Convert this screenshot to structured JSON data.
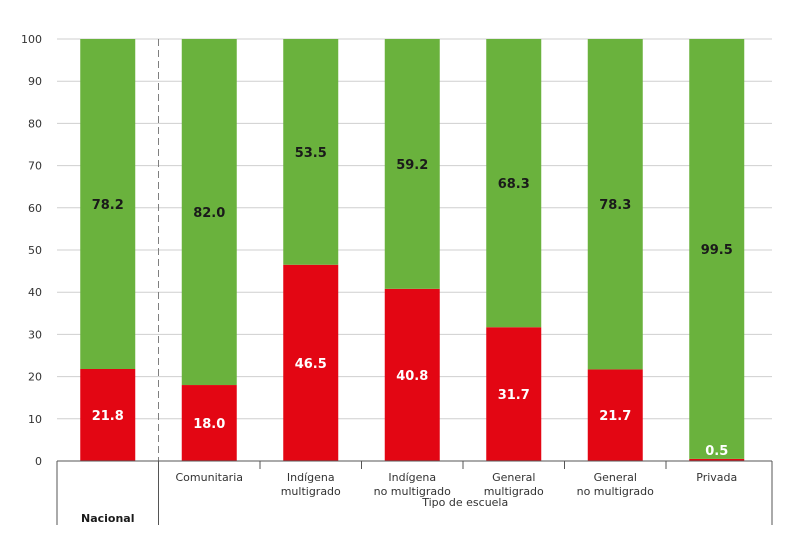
{
  "chart_data": {
    "type": "bar",
    "stacked": true,
    "categories": [
      [
        "Nacional"
      ],
      [
        "Comunitaria"
      ],
      [
        "Indígena",
        "multigrado"
      ],
      [
        "Indígena",
        "no multigrado"
      ],
      [
        "General",
        "multigrado"
      ],
      [
        "General",
        "no multigrado"
      ],
      [
        "Privada"
      ]
    ],
    "series": [
      {
        "values": [
          21.8,
          18.0,
          46.5,
          40.8,
          31.7,
          21.7,
          0.5
        ],
        "color": "#e30613"
      },
      {
        "values": [
          78.2,
          82.0,
          53.5,
          59.2,
          68.3,
          78.3,
          99.5
        ],
        "color": "#6ab23d"
      }
    ],
    "data_labels": [
      [
        "21.8",
        "18.0",
        "46.5",
        "40.8",
        "31.7",
        "21.7",
        "0.5"
      ],
      [
        "78.2",
        "82.0",
        "53.5",
        "59.2",
        "68.3",
        "78.3",
        "99.5"
      ]
    ],
    "ylim": [
      0,
      100
    ],
    "yticks": [
      "0",
      "10",
      "20",
      "30",
      "40",
      "50",
      "60",
      "70",
      "80",
      "90",
      "100"
    ],
    "xlabel": "Tipo de escuela",
    "grid": true
  }
}
